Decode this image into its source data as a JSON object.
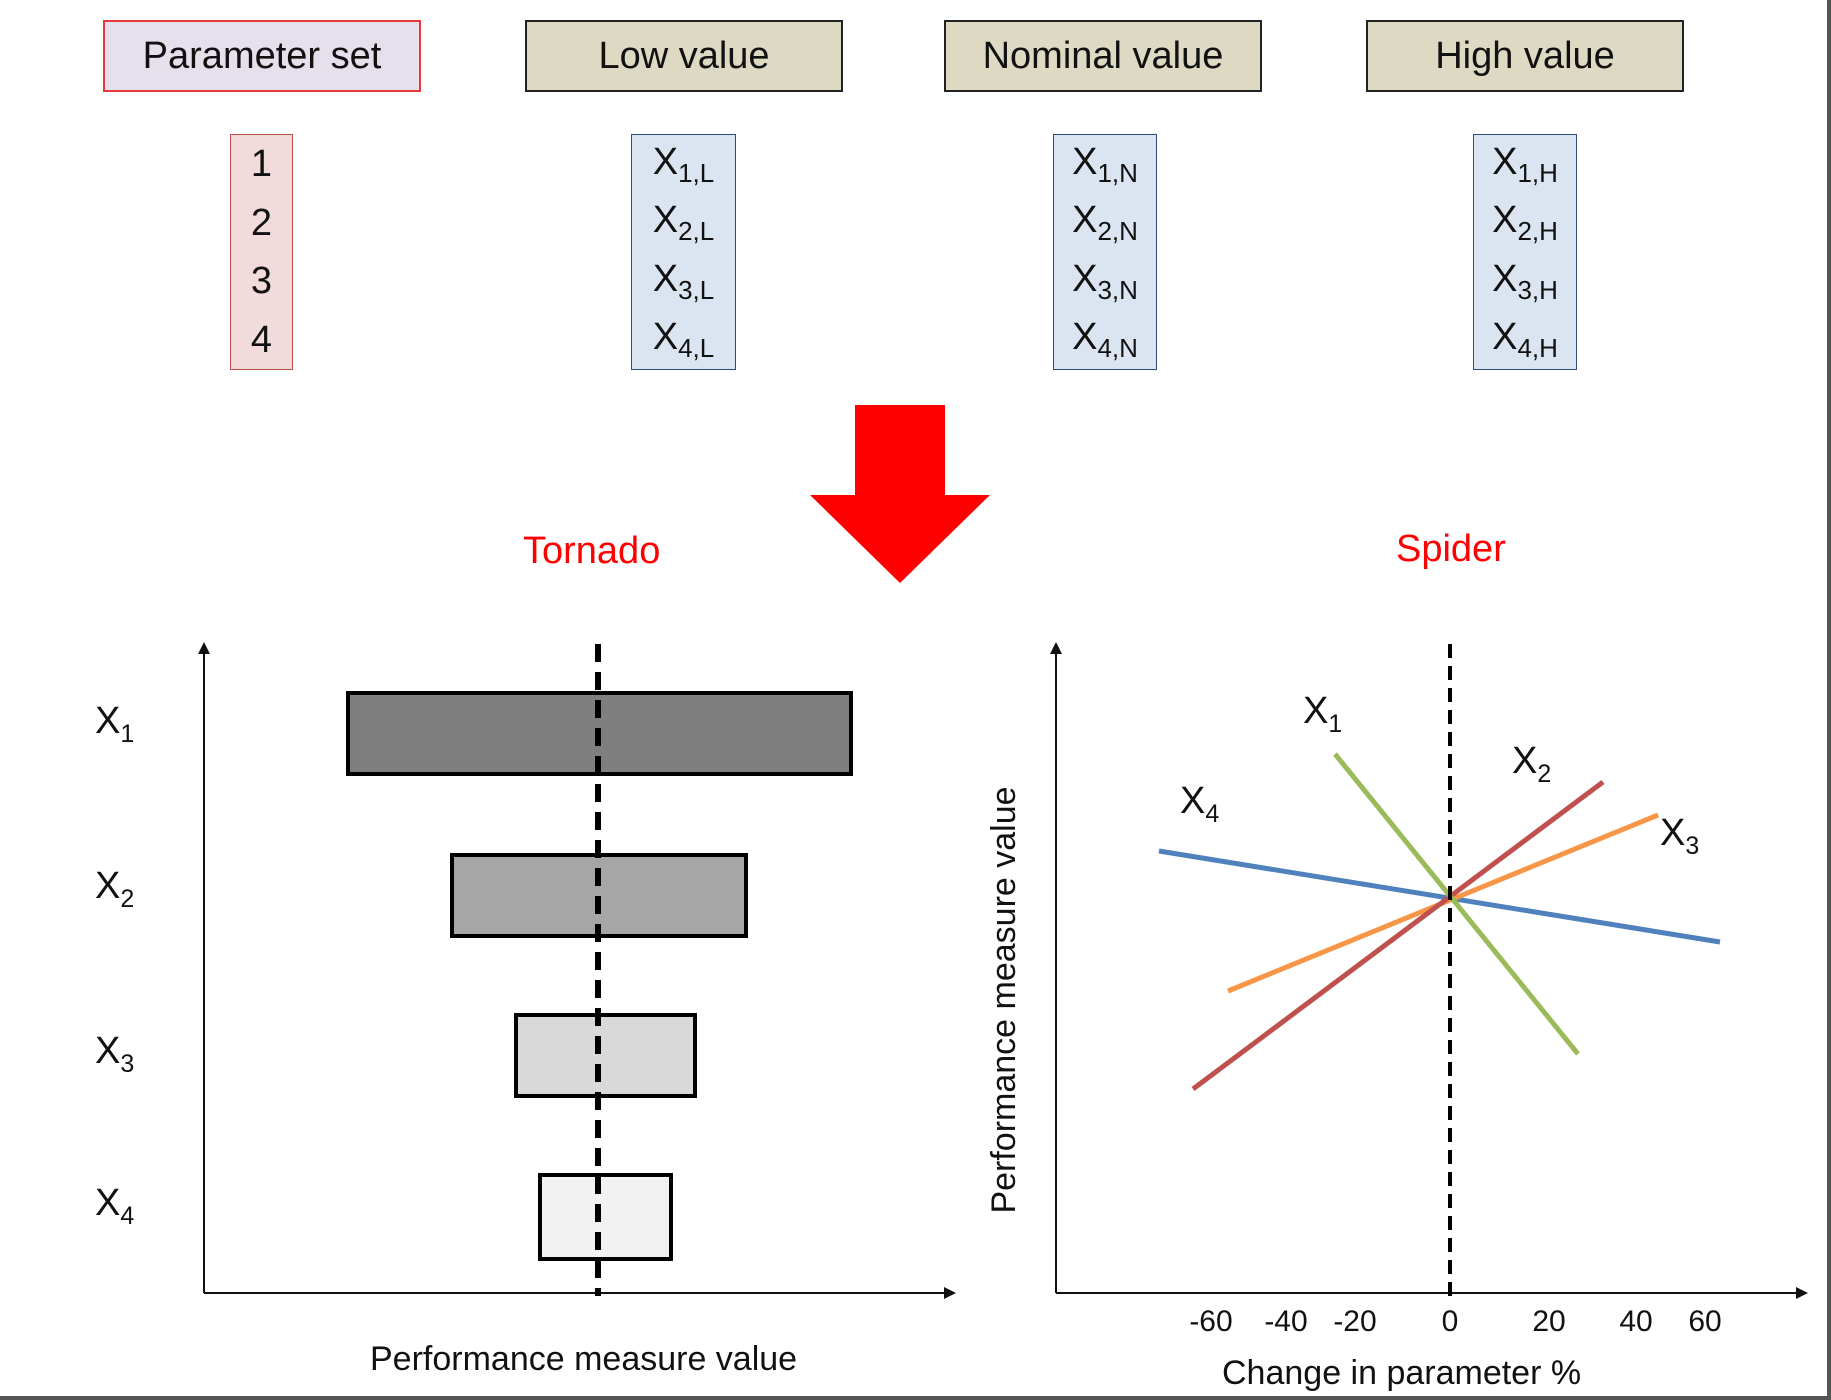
{
  "headers": {
    "parameter_set": "Parameter set",
    "low": "Low value",
    "nominal": "Nominal value",
    "high": "High value"
  },
  "parameter_set": [
    "1",
    "2",
    "3",
    "4"
  ],
  "low_values": [
    {
      "base": "X",
      "sub": "1,L"
    },
    {
      "base": "X",
      "sub": "2,L"
    },
    {
      "base": "X",
      "sub": "3,L"
    },
    {
      "base": "X",
      "sub": "4,L"
    }
  ],
  "nominal_values": [
    {
      "base": "X",
      "sub": "1,N"
    },
    {
      "base": "X",
      "sub": "2,N"
    },
    {
      "base": "X",
      "sub": "3,N"
    },
    {
      "base": "X",
      "sub": "4,N"
    }
  ],
  "high_values": [
    {
      "base": "X",
      "sub": "1,H"
    },
    {
      "base": "X",
      "sub": "2,H"
    },
    {
      "base": "X",
      "sub": "3,H"
    },
    {
      "base": "X",
      "sub": "4,H"
    }
  ],
  "colors": {
    "param_box_border": "#e8373d",
    "param_box_fill": "#e6e0ec",
    "param_col_fill": "#f2dcdb",
    "param_col_border": "#c0504d",
    "value_header_fill": "#ddd9c3",
    "value_col_fill": "#dbe5f1",
    "value_col_border": "#2e4a7e",
    "arrow": "#ff0000",
    "title": "#ff0000"
  },
  "tornado": {
    "title": "Tornado",
    "xlabel": "Performance measure value",
    "labels": [
      {
        "base": "X",
        "sub": "1"
      },
      {
        "base": "X",
        "sub": "2"
      },
      {
        "base": "X",
        "sub": "3"
      },
      {
        "base": "X",
        "sub": "4"
      }
    ],
    "fills": [
      "#7f7f7f",
      "#a6a6a6",
      "#d9d9d9",
      "#f2f2f2"
    ]
  },
  "spider": {
    "title": "Spider",
    "xlabel": "Change in parameter %",
    "ylabel": "Performance measure value",
    "x_ticks": [
      "-60",
      "-40",
      "-20",
      "0",
      "20",
      "40",
      "60"
    ],
    "lines": [
      {
        "name": "X1",
        "label": {
          "base": "X",
          "sub": "1"
        },
        "color": "#9bbb59"
      },
      {
        "name": "X2",
        "label": {
          "base": "X",
          "sub": "2"
        },
        "color": "#c0504d"
      },
      {
        "name": "X3",
        "label": {
          "base": "X",
          "sub": "3"
        },
        "color": "#f79646"
      },
      {
        "name": "X4",
        "label": {
          "base": "X",
          "sub": "4"
        },
        "color": "#4f81bd"
      }
    ]
  }
}
